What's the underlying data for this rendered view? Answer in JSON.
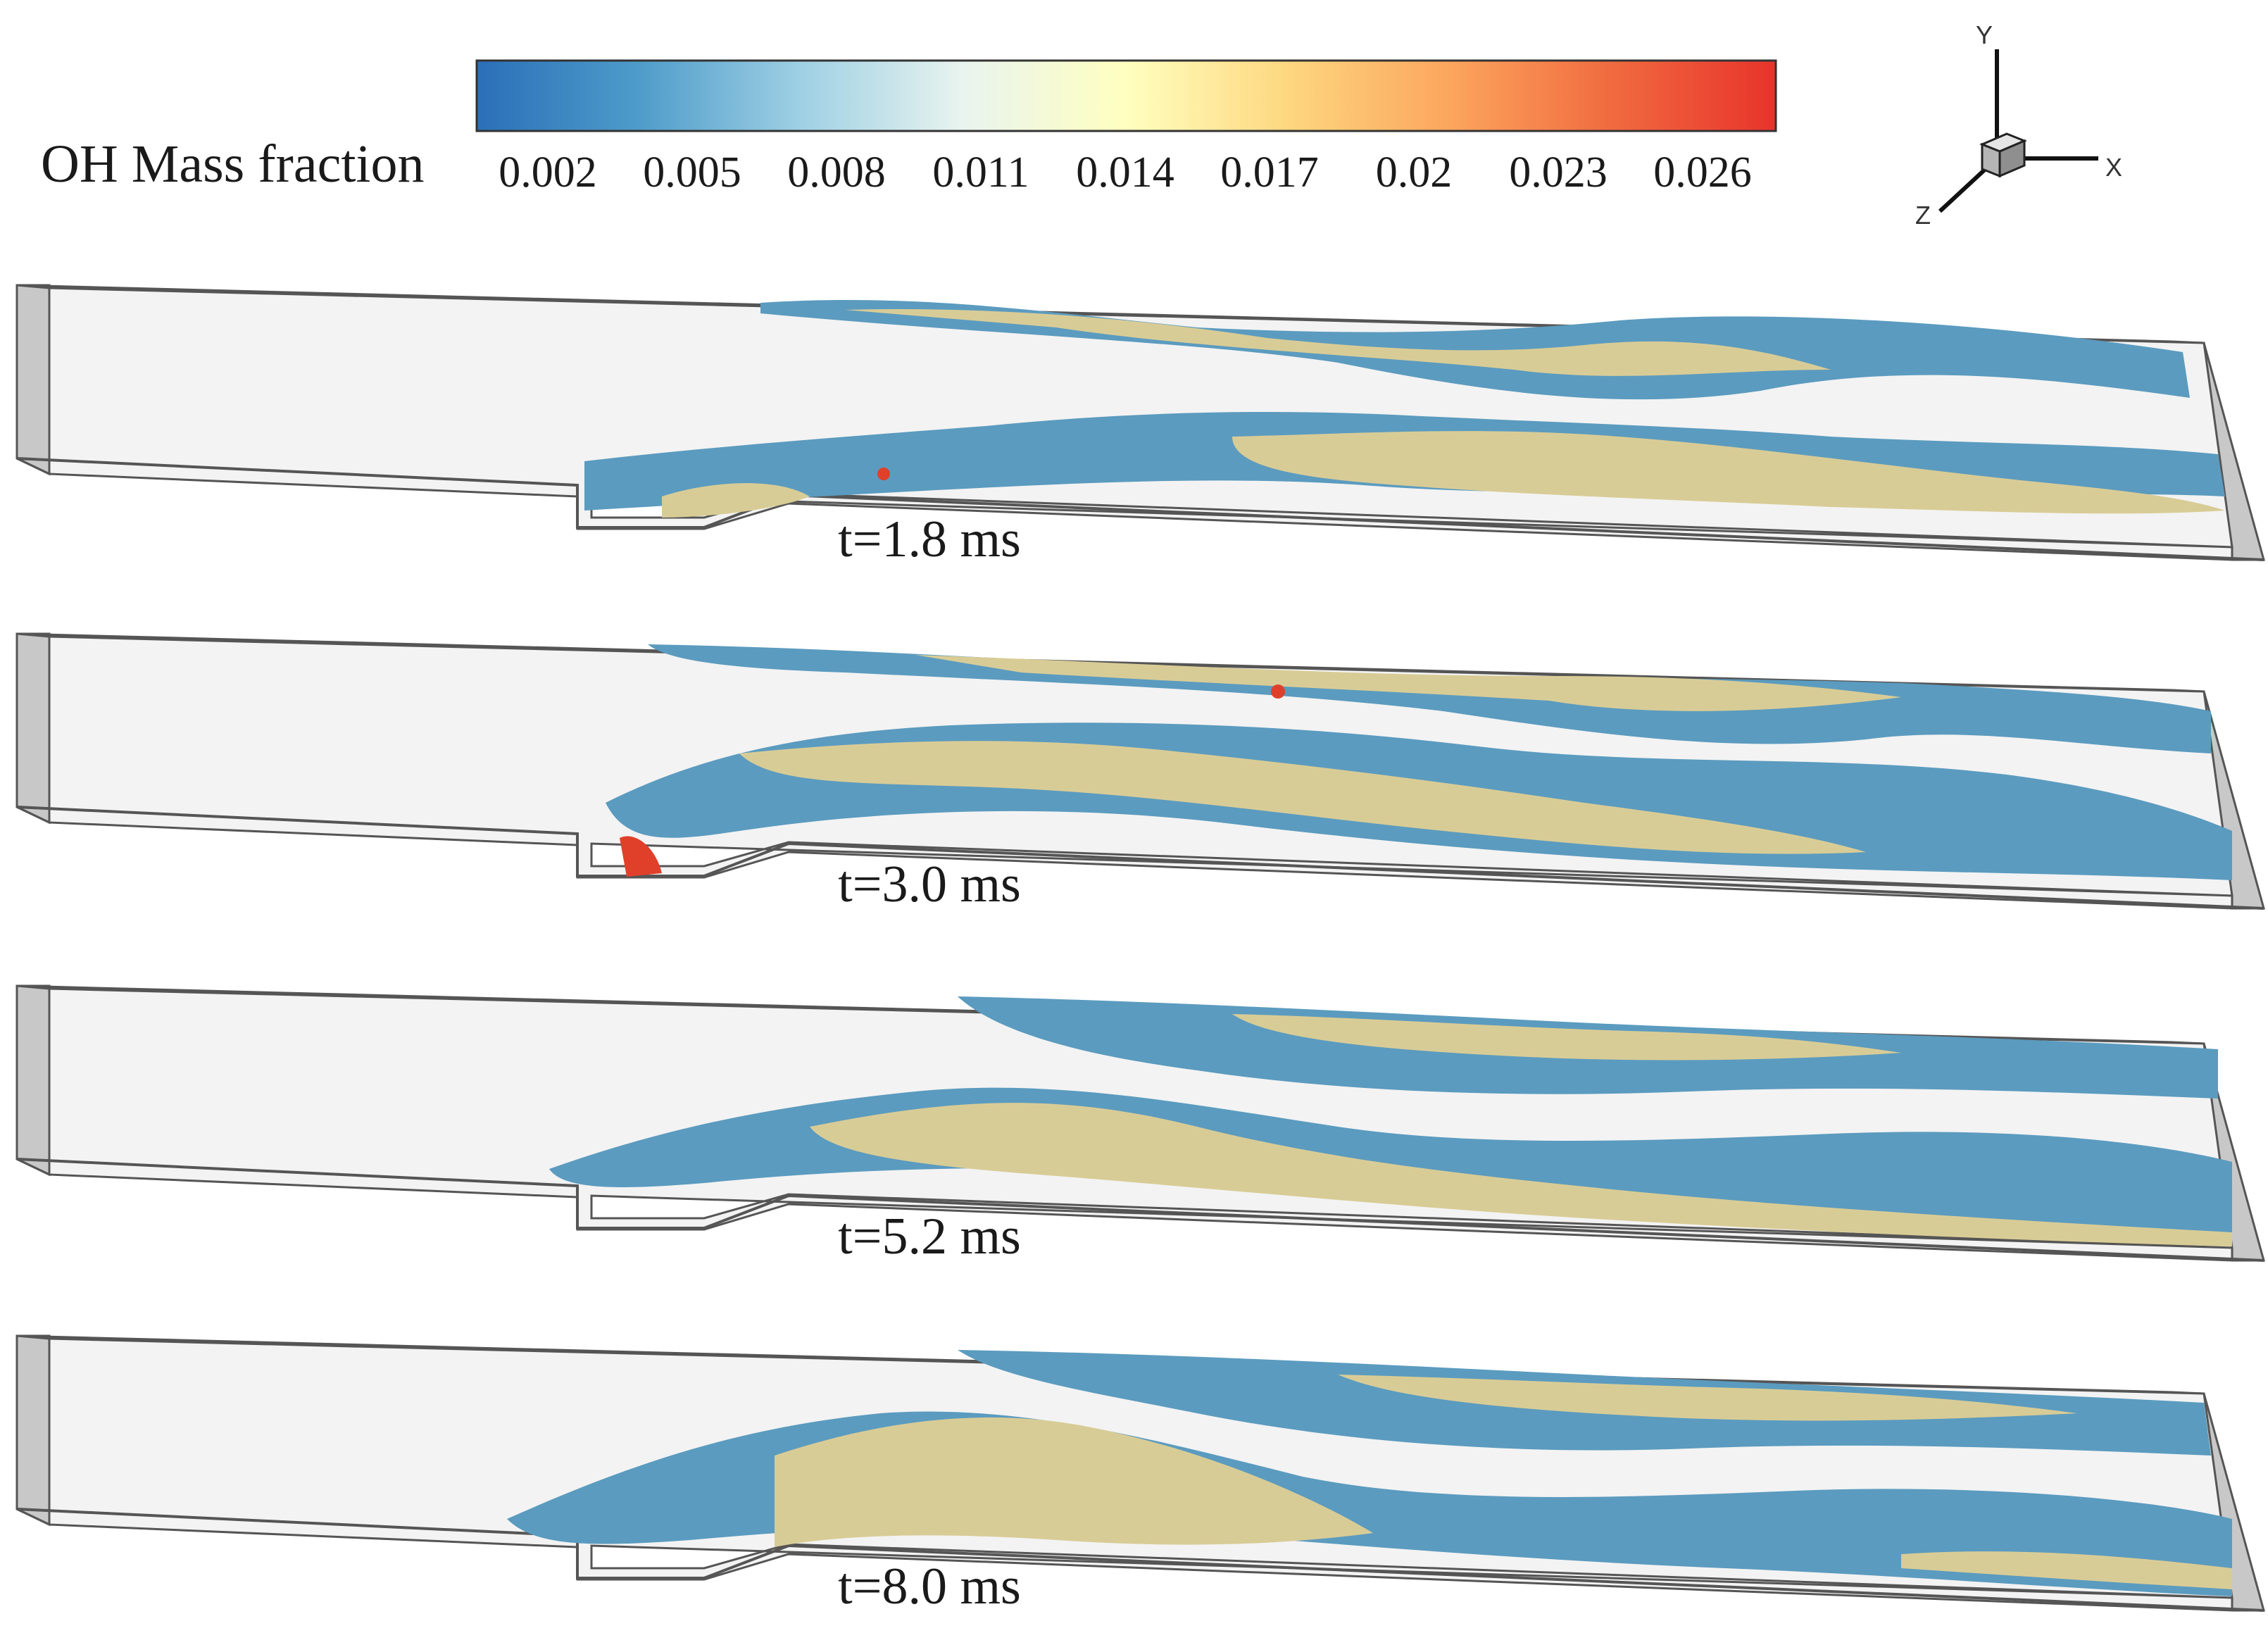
{
  "legend": {
    "title": "OH Mass fraction",
    "ticks": [
      "0.002",
      "0.005",
      "0.008",
      "0.011",
      "0.014",
      "0.017",
      "0.02",
      "0.023",
      "0.026"
    ],
    "colormap": [
      "#2a6fb8",
      "#4e9cca",
      "#9fd0e4",
      "#e9f4ef",
      "#ffffbf",
      "#fdd77f",
      "#fca55d",
      "#f06a3f",
      "#e8332b"
    ]
  },
  "axes": {
    "y": "Y",
    "x": "X",
    "z": "Z"
  },
  "panels": [
    {
      "time": "t=1.8 ms"
    },
    {
      "time": "t=3.0 ms"
    },
    {
      "time": "t=5.2 ms"
    },
    {
      "time": "t=8.0 ms"
    }
  ],
  "colors": {
    "oh_low_surface": "#5b9bbf",
    "oh_mid_surface": "#d8cc96",
    "oh_high_spot": "#e0402a",
    "domain_fill": "#f2f2f2",
    "domain_edge": "#555555"
  }
}
